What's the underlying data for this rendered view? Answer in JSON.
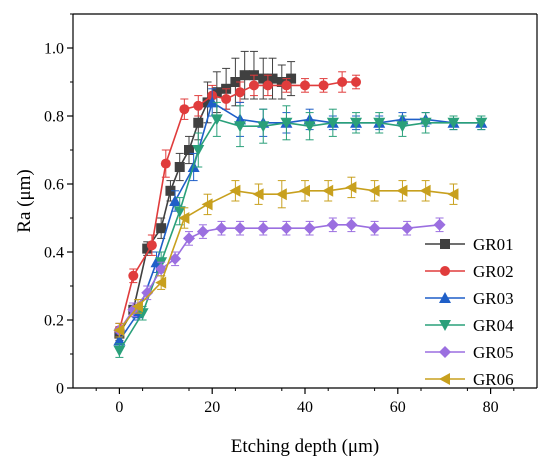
{
  "chart_data": {
    "type": "line",
    "xlabel": "Etching depth (μm)",
    "ylabel": "Ra (μm)",
    "xlim": [
      -10,
      90
    ],
    "ylim": [
      0,
      1.1
    ],
    "x_ticks": [
      0,
      20,
      40,
      60,
      80
    ],
    "y_ticks": [
      0,
      0.2,
      0.4,
      0.6,
      0.8,
      1.0
    ],
    "x_tick_labels": [
      "0",
      "20",
      "40",
      "60",
      "80"
    ],
    "y_tick_labels": [
      "0",
      "0.2",
      "0.4",
      "0.6",
      "0.8",
      "1.0"
    ],
    "grid": false,
    "legend_position": "right",
    "series": [
      {
        "name": "GR01",
        "color": "#404040",
        "marker": "square",
        "x": [
          0,
          3,
          6,
          9,
          11,
          13,
          15,
          17,
          19,
          21,
          23,
          25,
          27,
          29,
          31,
          33,
          35,
          37
        ],
        "y": [
          0.16,
          0.23,
          0.41,
          0.47,
          0.58,
          0.65,
          0.7,
          0.78,
          0.84,
          0.87,
          0.88,
          0.9,
          0.92,
          0.92,
          0.91,
          0.91,
          0.9,
          0.91
        ],
        "err": [
          0.02,
          0.02,
          0.02,
          0.03,
          0.03,
          0.04,
          0.04,
          0.05,
          0.06,
          0.06,
          0.06,
          0.07,
          0.07,
          0.07,
          0.06,
          0.06,
          0.05,
          0.05
        ]
      },
      {
        "name": "GR02",
        "color": "#e03c3c",
        "marker": "circle",
        "x": [
          0,
          3,
          7,
          10,
          14,
          17,
          20,
          23,
          26,
          29,
          32,
          36,
          40,
          44,
          48,
          51
        ],
        "y": [
          0.17,
          0.33,
          0.42,
          0.66,
          0.82,
          0.83,
          0.86,
          0.85,
          0.87,
          0.89,
          0.89,
          0.89,
          0.89,
          0.89,
          0.9,
          0.9
        ],
        "err": [
          0.02,
          0.02,
          0.03,
          0.04,
          0.03,
          0.03,
          0.03,
          0.03,
          0.03,
          0.03,
          0.03,
          0.02,
          0.02,
          0.02,
          0.03,
          0.02
        ]
      },
      {
        "name": "GR03",
        "color": "#1f5fc8",
        "marker": "triangle-up",
        "x": [
          0,
          4,
          8,
          12,
          16,
          20,
          26,
          31,
          36,
          41,
          46,
          51,
          56,
          61,
          66,
          72,
          78
        ],
        "y": [
          0.14,
          0.22,
          0.37,
          0.55,
          0.65,
          0.84,
          0.79,
          0.78,
          0.78,
          0.79,
          0.78,
          0.78,
          0.78,
          0.79,
          0.79,
          0.78,
          0.78
        ],
        "err": [
          0.02,
          0.02,
          0.03,
          0.03,
          0.04,
          0.04,
          0.05,
          0.04,
          0.03,
          0.03,
          0.02,
          0.02,
          0.02,
          0.02,
          0.02,
          0.02,
          0.02
        ]
      },
      {
        "name": "GR04",
        "color": "#2aa07a",
        "marker": "triangle-down",
        "x": [
          0,
          5,
          9,
          13,
          17,
          21,
          26,
          31,
          36,
          41,
          46,
          51,
          56,
          61,
          66,
          72,
          78
        ],
        "y": [
          0.11,
          0.22,
          0.37,
          0.52,
          0.7,
          0.79,
          0.77,
          0.77,
          0.78,
          0.77,
          0.78,
          0.78,
          0.78,
          0.77,
          0.78,
          0.78,
          0.78
        ],
        "err": [
          0.02,
          0.02,
          0.03,
          0.04,
          0.05,
          0.05,
          0.06,
          0.05,
          0.05,
          0.04,
          0.04,
          0.03,
          0.03,
          0.03,
          0.03,
          0.02,
          0.02
        ]
      },
      {
        "name": "GR05",
        "color": "#9b6fe0",
        "marker": "diamond",
        "x": [
          0,
          3,
          6,
          9,
          12,
          15,
          18,
          22,
          26,
          31,
          36,
          41,
          46,
          50,
          55,
          62,
          69
        ],
        "y": [
          0.17,
          0.23,
          0.28,
          0.35,
          0.38,
          0.44,
          0.46,
          0.47,
          0.47,
          0.47,
          0.47,
          0.47,
          0.48,
          0.48,
          0.47,
          0.47,
          0.48
        ],
        "err": [
          0.02,
          0.02,
          0.02,
          0.02,
          0.02,
          0.02,
          0.02,
          0.02,
          0.02,
          0.02,
          0.02,
          0.02,
          0.02,
          0.02,
          0.02,
          0.02,
          0.02
        ]
      },
      {
        "name": "GR06",
        "color": "#c8a01e",
        "marker": "triangle-left",
        "x": [
          0,
          4,
          9,
          14,
          19,
          25,
          30,
          35,
          40,
          45,
          50,
          55,
          61,
          66,
          72
        ],
        "y": [
          0.17,
          0.24,
          0.31,
          0.5,
          0.54,
          0.58,
          0.57,
          0.57,
          0.58,
          0.58,
          0.59,
          0.58,
          0.58,
          0.58,
          0.57
        ],
        "err": [
          0.02,
          0.02,
          0.02,
          0.03,
          0.03,
          0.03,
          0.03,
          0.04,
          0.03,
          0.03,
          0.03,
          0.03,
          0.03,
          0.03,
          0.03
        ]
      }
    ]
  }
}
